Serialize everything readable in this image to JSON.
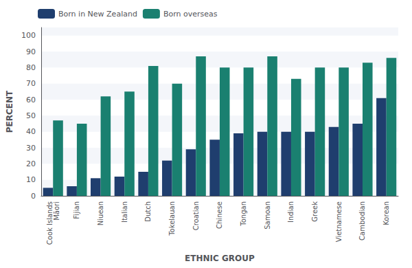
{
  "chart_data": {
    "type": "bar",
    "categories": [
      "Cook Islands\nMāori",
      "Fijian",
      "Niuean",
      "Italian",
      "Dutch",
      "Tokelauan",
      "Croatian",
      "Chinese",
      "Tongan",
      "Samoan",
      "Indian",
      "Greek",
      "Vietnamese",
      "Cambodian",
      "Korean"
    ],
    "series": [
      {
        "name": "Born in New Zealand",
        "color": "#1f3e6e",
        "values": [
          5,
          6,
          11,
          12,
          15,
          22,
          29,
          35,
          39,
          40,
          40,
          40,
          43,
          45,
          61
        ]
      },
      {
        "name": "Born overseas",
        "color": "#1a8070",
        "values": [
          47,
          45,
          62,
          65,
          81,
          70,
          87,
          80,
          80,
          87,
          73,
          80,
          80,
          83,
          86
        ]
      }
    ],
    "xlabel": "ETHNIC GROUP",
    "ylabel": "PERCENT",
    "ylim": [
      0,
      105
    ],
    "yticks": [
      0,
      10,
      20,
      30,
      40,
      50,
      60,
      70,
      80,
      90,
      100
    ],
    "grid": true,
    "legend": "upper left"
  }
}
